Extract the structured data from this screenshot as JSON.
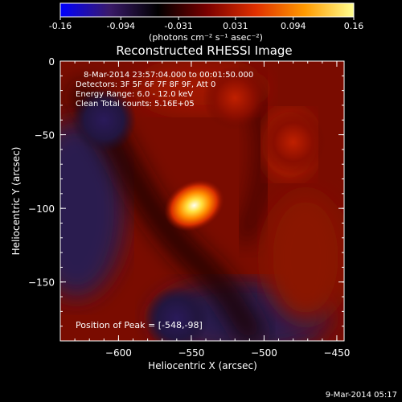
{
  "chart_data": {
    "type": "heatmap",
    "title": "Reconstructed RHESSI Image",
    "xlabel": "Heliocentric X (arcsec)",
    "ylabel": "Heliocentric Y (arcsec)",
    "xlim": [
      -640,
      -445
    ],
    "ylim": [
      -190,
      0
    ],
    "xticks": [
      -600,
      -550,
      -500,
      -450
    ],
    "yticks": [
      0,
      -50,
      -100,
      -150
    ],
    "colorbar": {
      "ticks": [
        "-0.16",
        "-0.094",
        "-0.031",
        "0.031",
        "0.094",
        "0.16"
      ],
      "range": [
        -0.16,
        0.16
      ],
      "unit_label": "(photons cm⁻² s⁻¹ asec⁻²)",
      "colormap": [
        "#0000ff",
        "#3a1a6a",
        "#000000",
        "#7a0000",
        "#e03000",
        "#ff9a00",
        "#ffff90"
      ]
    },
    "annotations": [
      "8-Mar-2014 23:57:04.000 to 00:01:50.000",
      "Detectors: 3F 5F 6F 7F 8F 9F, Att 0",
      "Energy Range: 6.0 - 12.0 keV",
      "Clean     Total counts: 5.16E+05"
    ],
    "peak_label": "Position of Peak = [-548,-98]",
    "peak": {
      "x": -548,
      "y": -98,
      "value": 0.16
    },
    "features": [
      {
        "x": -548,
        "y": -98,
        "value": 0.16
      },
      {
        "x": -480,
        "y": -55,
        "value": 0.06
      },
      {
        "x": -520,
        "y": -25,
        "value": 0.05
      },
      {
        "x": -610,
        "y": -40,
        "value": -0.02
      },
      {
        "x": -560,
        "y": -175,
        "value": -0.03
      }
    ],
    "grid": false
  },
  "footer": {
    "timestamp": "9-Mar-2014 05:17"
  }
}
